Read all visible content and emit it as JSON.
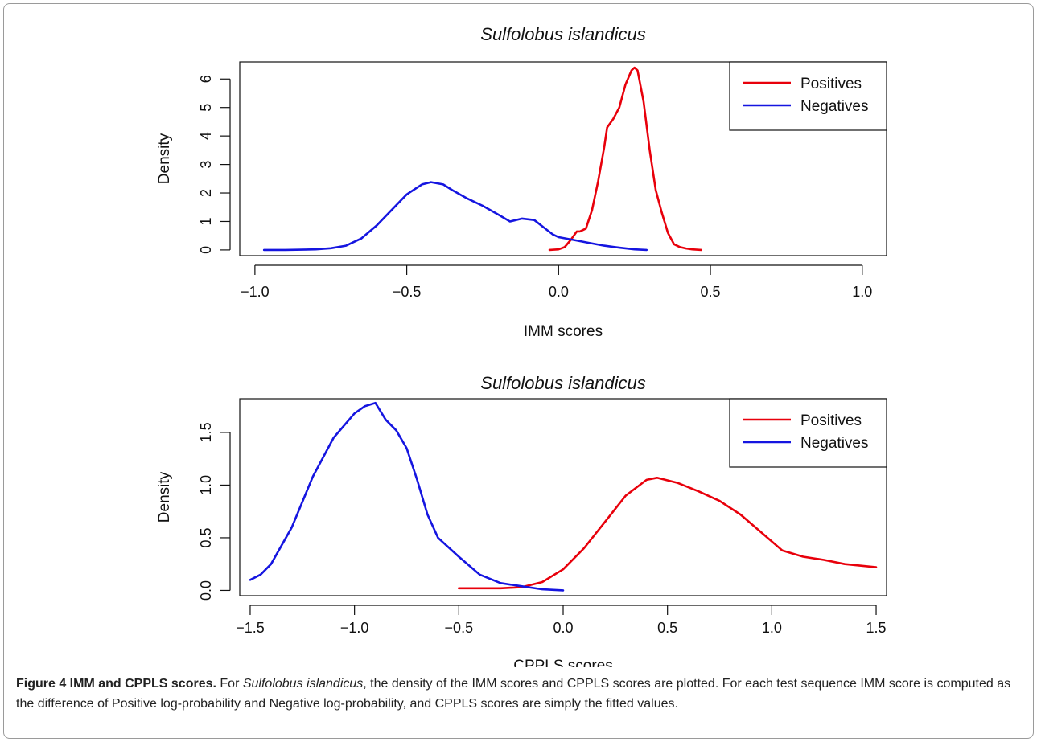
{
  "chart_data": [
    {
      "type": "line",
      "title": "Sulfolobus islandicus",
      "xlabel": "IMM scores",
      "ylabel": "Density",
      "xlim": [
        -1.05,
        1.08
      ],
      "ylim": [
        -0.2,
        6.6
      ],
      "xticks": [
        -1.0,
        -0.5,
        0.0,
        0.5,
        1.0
      ],
      "xticklabels": [
        "−1.0",
        "−0.5",
        "0.0",
        "0.5",
        "1.0"
      ],
      "yticks": [
        0,
        1,
        2,
        3,
        4,
        5,
        6
      ],
      "yticklabels": [
        "0",
        "1",
        "2",
        "3",
        "4",
        "5",
        "6"
      ],
      "legend": {
        "position": "top-right",
        "entries": [
          "Positives",
          "Negatives"
        ]
      },
      "grid": false,
      "series": [
        {
          "name": "Positives",
          "color": "#e8000b",
          "x": [
            -0.03,
            0.0,
            0.02,
            0.04,
            0.06,
            0.07,
            0.09,
            0.11,
            0.13,
            0.15,
            0.16,
            0.18,
            0.2,
            0.22,
            0.24,
            0.25,
            0.26,
            0.28,
            0.3,
            0.32,
            0.34,
            0.36,
            0.38,
            0.4,
            0.42,
            0.44,
            0.47
          ],
          "y": [
            0.0,
            0.02,
            0.1,
            0.35,
            0.65,
            0.65,
            0.75,
            1.4,
            2.4,
            3.6,
            4.3,
            4.6,
            5.0,
            5.8,
            6.3,
            6.4,
            6.3,
            5.2,
            3.5,
            2.1,
            1.3,
            0.6,
            0.2,
            0.1,
            0.05,
            0.02,
            0.0
          ]
        },
        {
          "name": "Negatives",
          "color": "#1515e0",
          "x": [
            -0.97,
            -0.9,
            -0.8,
            -0.75,
            -0.7,
            -0.65,
            -0.6,
            -0.55,
            -0.5,
            -0.45,
            -0.42,
            -0.38,
            -0.35,
            -0.3,
            -0.25,
            -0.2,
            -0.16,
            -0.12,
            -0.08,
            -0.05,
            -0.02,
            0.0,
            0.05,
            0.1,
            0.15,
            0.2,
            0.25,
            0.29
          ],
          "y": [
            0.0,
            0.0,
            0.02,
            0.06,
            0.15,
            0.4,
            0.85,
            1.4,
            1.95,
            2.3,
            2.38,
            2.3,
            2.1,
            1.8,
            1.55,
            1.25,
            1.0,
            1.1,
            1.05,
            0.8,
            0.55,
            0.45,
            0.35,
            0.25,
            0.15,
            0.08,
            0.02,
            0.0
          ]
        }
      ]
    },
    {
      "type": "line",
      "title": "Sulfolobus islandicus",
      "xlabel": "CPPLS scores",
      "ylabel": "Density",
      "xlim": [
        -1.55,
        1.55
      ],
      "ylim": [
        -0.05,
        1.82
      ],
      "xticks": [
        -1.5,
        -1.0,
        -0.5,
        0.0,
        0.5,
        1.0,
        1.5
      ],
      "xticklabels": [
        "−1.5",
        "−1.0",
        "−0.5",
        "0.0",
        "0.5",
        "1.0",
        "1.5"
      ],
      "yticks": [
        0.0,
        0.5,
        1.0,
        1.5
      ],
      "yticklabels": [
        "0.0",
        "0.5",
        "1.0",
        "1.5"
      ],
      "legend": {
        "position": "top-right",
        "entries": [
          "Positives",
          "Negatives"
        ]
      },
      "grid": false,
      "series": [
        {
          "name": "Positives",
          "color": "#e8000b",
          "x": [
            -0.5,
            -0.4,
            -0.3,
            -0.2,
            -0.1,
            0.0,
            0.1,
            0.2,
            0.3,
            0.4,
            0.45,
            0.55,
            0.65,
            0.75,
            0.85,
            0.95,
            1.05,
            1.15,
            1.25,
            1.35,
            1.5
          ],
          "y": [
            0.02,
            0.02,
            0.02,
            0.03,
            0.08,
            0.2,
            0.4,
            0.65,
            0.9,
            1.05,
            1.07,
            1.02,
            0.94,
            0.85,
            0.72,
            0.55,
            0.38,
            0.32,
            0.29,
            0.25,
            0.22
          ]
        },
        {
          "name": "Negatives",
          "color": "#1515e0",
          "x": [
            -1.5,
            -1.45,
            -1.4,
            -1.3,
            -1.2,
            -1.1,
            -1.0,
            -0.95,
            -0.9,
            -0.85,
            -0.8,
            -0.75,
            -0.7,
            -0.65,
            -0.6,
            -0.5,
            -0.4,
            -0.3,
            -0.2,
            -0.1,
            0.0
          ],
          "y": [
            0.1,
            0.15,
            0.25,
            0.6,
            1.08,
            1.45,
            1.68,
            1.75,
            1.78,
            1.62,
            1.52,
            1.35,
            1.05,
            0.72,
            0.5,
            0.32,
            0.15,
            0.07,
            0.04,
            0.01,
            0.0
          ]
        }
      ]
    }
  ],
  "caption": {
    "label": "Figure 4 IMM and CPPLS scores.",
    "text_before_species": " For ",
    "species": "Sulfolobus islandicus",
    "text_after_species": ", the density of the IMM scores and CPPLS scores are plotted. For each test sequence IMM score is computed as the difference of Positive log-probability and Negative log-probability, and CPPLS scores are simply the fitted values."
  }
}
